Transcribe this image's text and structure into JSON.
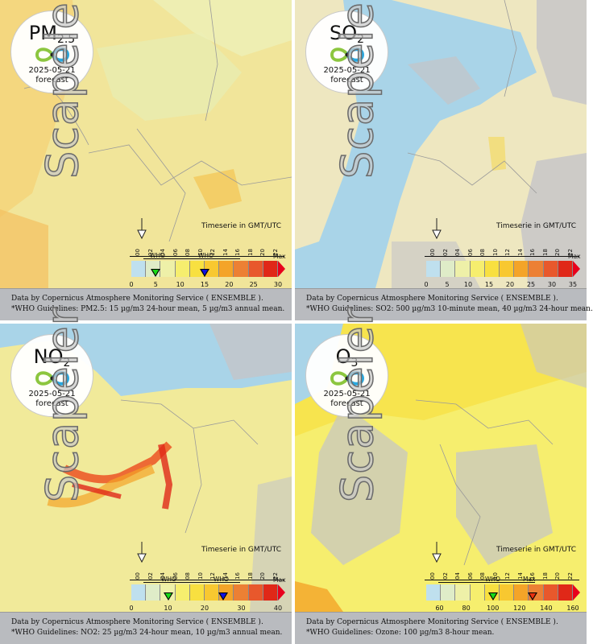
{
  "panels": [
    {
      "id": "pm25",
      "pollutant": "PM",
      "pollutant_sub": "2.5",
      "date": "2025-05-21",
      "forecast_label": "forecast",
      "watermark": "Scapeler",
      "timeserie_label": "Timeserie in GMT/UTC",
      "hours": [
        "00",
        "02",
        "04",
        "06",
        "08",
        "10",
        "12",
        "14",
        "16",
        "18",
        "20",
        "22"
      ],
      "who_labels": [
        "WHO",
        "WHO"
      ],
      "max_label": "Max",
      "scale_ticks": [
        "0",
        "5",
        "10",
        "15",
        "20",
        "25",
        "30"
      ],
      "who_markers": [
        {
          "value": 5,
          "color": "#18d818"
        },
        {
          "value": 15,
          "color": "#1010e0"
        }
      ],
      "scale_max": 30,
      "footer_line1": "Data by Copernicus Atmosphere Monitoring Service ( ENSEMBLE ).",
      "footer_line2": "*WHO Guidelines: PM2.5: 15 µg/m3 24-hour mean, 5 µg/m3 annual mean."
    },
    {
      "id": "so2",
      "pollutant": "SO",
      "pollutant_sub": "2",
      "date": "2025-05-21",
      "forecast_label": "forecast",
      "watermark": "Scapeler",
      "timeserie_label": "Timeserie in GMT/UTC",
      "hours": [
        "00",
        "02",
        "04",
        "06",
        "08",
        "10",
        "12",
        "14",
        "16",
        "18",
        "20",
        "22"
      ],
      "who_labels": [],
      "max_label": "Max",
      "scale_ticks": [
        "0",
        "5",
        "10",
        "15",
        "20",
        "25",
        "30",
        "35"
      ],
      "who_markers": [],
      "scale_max": 35,
      "footer_line1": "Data by Copernicus Atmosphere Monitoring Service ( ENSEMBLE ).",
      "footer_line2": "*WHO Guidelines: SO2: 500 µg/m3 10-minute mean, 40 µg/m3 24-hour mean."
    },
    {
      "id": "no2",
      "pollutant": "NO",
      "pollutant_sub": "2",
      "date": "2025-05-21",
      "forecast_label": "forecast",
      "watermark": "Scapeler",
      "timeserie_label": "Timeserie in GMT/UTC",
      "hours": [
        "00",
        "02",
        "04",
        "06",
        "08",
        "10",
        "12",
        "14",
        "16",
        "18",
        "20",
        "22"
      ],
      "who_labels": [
        "WHO",
        "WHO"
      ],
      "max_label": "Max",
      "scale_ticks": [
        "0",
        "10",
        "20",
        "30",
        "40"
      ],
      "who_markers": [
        {
          "value": 10,
          "color": "#18d818"
        },
        {
          "value": 25,
          "color": "#1010e0"
        }
      ],
      "scale_max": 40,
      "footer_line1": "Data by Copernicus Atmosphere Monitoring Service ( ENSEMBLE ).",
      "footer_line2": "*WHO Guidelines: NO2: 25 µg/m3 24-hour mean, 10 µg/m3 annual mean."
    },
    {
      "id": "o3",
      "pollutant": "O",
      "pollutant_sub": "3",
      "date": "2025-05-21",
      "forecast_label": "forecast",
      "watermark": "Scapeler",
      "timeserie_label": "Timeserie in GMT/UTC",
      "hours": [
        "00",
        "02",
        "04",
        "06",
        "08",
        "10",
        "12",
        "14",
        "16",
        "18",
        "20",
        "22"
      ],
      "who_labels": [
        "WHO",
        "Max"
      ],
      "max_label": "Max",
      "scale_ticks": [
        "60",
        "80",
        "100",
        "120",
        "140",
        "160"
      ],
      "who_markers": [
        {
          "value": 100,
          "color": "#18d818"
        },
        {
          "value": 130,
          "color": "#e83010"
        }
      ],
      "scale_min": 50,
      "scale_max": 160,
      "footer_line1": "Data by Copernicus Atmosphere Monitoring Service ( ENSEMBLE ).",
      "footer_line2": "*WHO Guidelines: Ozone: 100 µg/m3 8-hour mean."
    }
  ],
  "colors": {
    "sea": "#a9d4e8",
    "land_pm25": "#f1e59a",
    "land_so2": "#eee7c0",
    "no_data": "#c4c4c8",
    "footer_bg": "#b9bbbf",
    "scale": [
      "#bfe0ee",
      "#dfecc8",
      "#eef0a8",
      "#f6ee6e",
      "#f8e040",
      "#f8c830",
      "#f4a428",
      "#ec8034",
      "#e8582c",
      "#e02818",
      "#e8001c"
    ]
  }
}
